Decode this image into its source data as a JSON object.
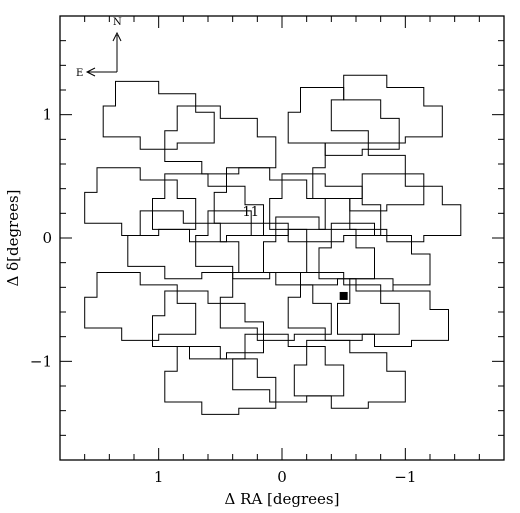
{
  "chart_data": {
    "type": "scatter",
    "title": "",
    "xlabel": "Δ RA [degrees]",
    "ylabel": "Δ δ[degrees]",
    "xlim": [
      1.8,
      -1.8
    ],
    "ylim": [
      -1.8,
      1.8
    ],
    "x_ticks": [
      -1,
      0,
      1
    ],
    "y_ticks": [
      -1,
      0,
      1
    ],
    "x_tick_labels": [
      "−1",
      "0",
      "1"
    ],
    "y_tick_labels": [
      "−1",
      "0",
      "1"
    ],
    "grid": false,
    "compass": {
      "north": "N",
      "east": "E"
    },
    "annotation": {
      "text": "11",
      "x": 0.32,
      "y": 0.18
    },
    "marker": {
      "shape": "filled-square",
      "x": -0.5,
      "y": -0.47
    },
    "pointings": [
      {
        "x": 1.0,
        "y": 1.0
      },
      {
        "x": 0.5,
        "y": 0.8
      },
      {
        "x": -0.5,
        "y": 0.95
      },
      {
        "x": -0.85,
        "y": 1.05
      },
      {
        "x": 1.15,
        "y": 0.3
      },
      {
        "x": 0.6,
        "y": 0.25
      },
      {
        "x": 0.1,
        "y": 0.3
      },
      {
        "x": -0.35,
        "y": 0.25
      },
      {
        "x": -0.7,
        "y": 0.5
      },
      {
        "x": -1.0,
        "y": 0.25
      },
      {
        "x": 0.8,
        "y": -0.05
      },
      {
        "x": 0.25,
        "y": -0.05
      },
      {
        "x": -0.3,
        "y": -0.1
      },
      {
        "x": -0.75,
        "y": -0.15
      },
      {
        "x": 1.15,
        "y": -0.55
      },
      {
        "x": 0.6,
        "y": -0.7
      },
      {
        "x": 0.05,
        "y": -0.55
      },
      {
        "x": -0.5,
        "y": -0.55
      },
      {
        "x": -0.9,
        "y": -0.6
      },
      {
        "x": 0.5,
        "y": -1.15
      },
      {
        "x": -0.05,
        "y": -1.05
      },
      {
        "x": -0.55,
        "y": -1.1
      }
    ]
  }
}
